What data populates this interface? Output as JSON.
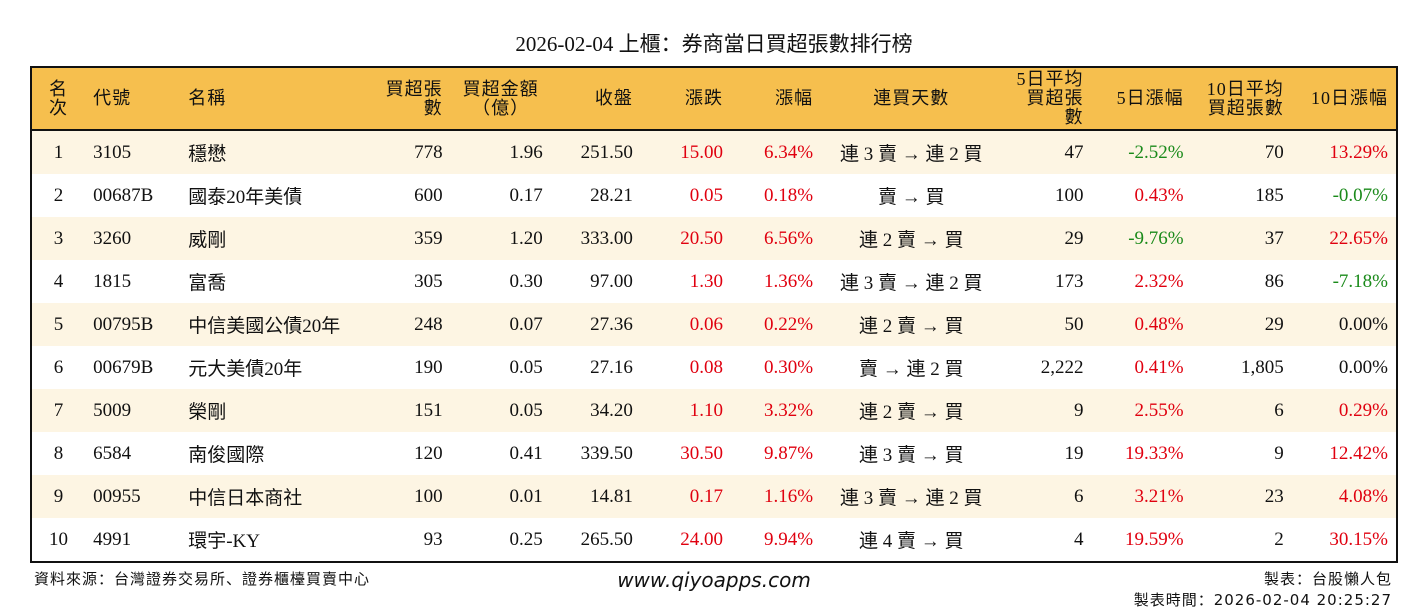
{
  "title": "2026-02-04 上櫃：券商當日買超張數排行榜",
  "colors": {
    "header_bg": "#F6BF4E",
    "alt_row_bg": "#FDF5E3",
    "up": "#E0000F",
    "down": "#1A8A1A"
  },
  "columns": [
    "名次",
    "代號",
    "名稱",
    "買超張數",
    "買超金額\n（億）",
    "收盤",
    "漲跌",
    "漲幅",
    "連買天數",
    "5日平均\n買超張數",
    "5日漲幅",
    "10日平均\n買超張數",
    "10日漲幅"
  ],
  "rows": [
    [
      "1",
      "3105",
      "穩懋",
      "778",
      "1.96",
      "251.50",
      "15.00",
      "6.34%",
      "連 3 賣 → 連 2 買",
      "47",
      "-2.52%",
      "70",
      "13.29%"
    ],
    [
      "2",
      "00687B",
      "國泰20年美債",
      "600",
      "0.17",
      "28.21",
      "0.05",
      "0.18%",
      "賣 → 買",
      "100",
      "0.43%",
      "185",
      "-0.07%"
    ],
    [
      "3",
      "3260",
      "威剛",
      "359",
      "1.20",
      "333.00",
      "20.50",
      "6.56%",
      "連 2 賣 → 買",
      "29",
      "-9.76%",
      "37",
      "22.65%"
    ],
    [
      "4",
      "1815",
      "富喬",
      "305",
      "0.30",
      "97.00",
      "1.30",
      "1.36%",
      "連 3 賣 → 連 2 買",
      "173",
      "2.32%",
      "86",
      "-7.18%"
    ],
    [
      "5",
      "00795B",
      "中信美國公債20年",
      "248",
      "0.07",
      "27.36",
      "0.06",
      "0.22%",
      "連 2 賣 → 買",
      "50",
      "0.48%",
      "29",
      "0.00%"
    ],
    [
      "6",
      "00679B",
      "元大美債20年",
      "190",
      "0.05",
      "27.16",
      "0.08",
      "0.30%",
      "賣 → 連 2 買",
      "2,222",
      "0.41%",
      "1,805",
      "0.00%"
    ],
    [
      "7",
      "5009",
      "榮剛",
      "151",
      "0.05",
      "34.20",
      "1.10",
      "3.32%",
      "連 2 賣 → 買",
      "9",
      "2.55%",
      "6",
      "0.29%"
    ],
    [
      "8",
      "6584",
      "南俊國際",
      "120",
      "0.41",
      "339.50",
      "30.50",
      "9.87%",
      "連 3 賣 → 買",
      "19",
      "19.33%",
      "9",
      "12.42%"
    ],
    [
      "9",
      "00955",
      "中信日本商社",
      "100",
      "0.01",
      "14.81",
      "0.17",
      "1.16%",
      "連 3 賣 → 連 2 買",
      "6",
      "3.21%",
      "23",
      "4.08%"
    ],
    [
      "10",
      "4991",
      "環宇-KY",
      "93",
      "0.25",
      "265.50",
      "24.00",
      "9.94%",
      "連 4 賣 → 買",
      "4",
      "19.59%",
      "2",
      "30.15%"
    ]
  ],
  "footer": {
    "source": "資料來源：台灣證券交易所、證券櫃檯買賣中心",
    "website": "www.qiyoapps.com",
    "author": "製表：台股懶人包",
    "time": "製表時間：2026-02-04 20:25:27"
  }
}
